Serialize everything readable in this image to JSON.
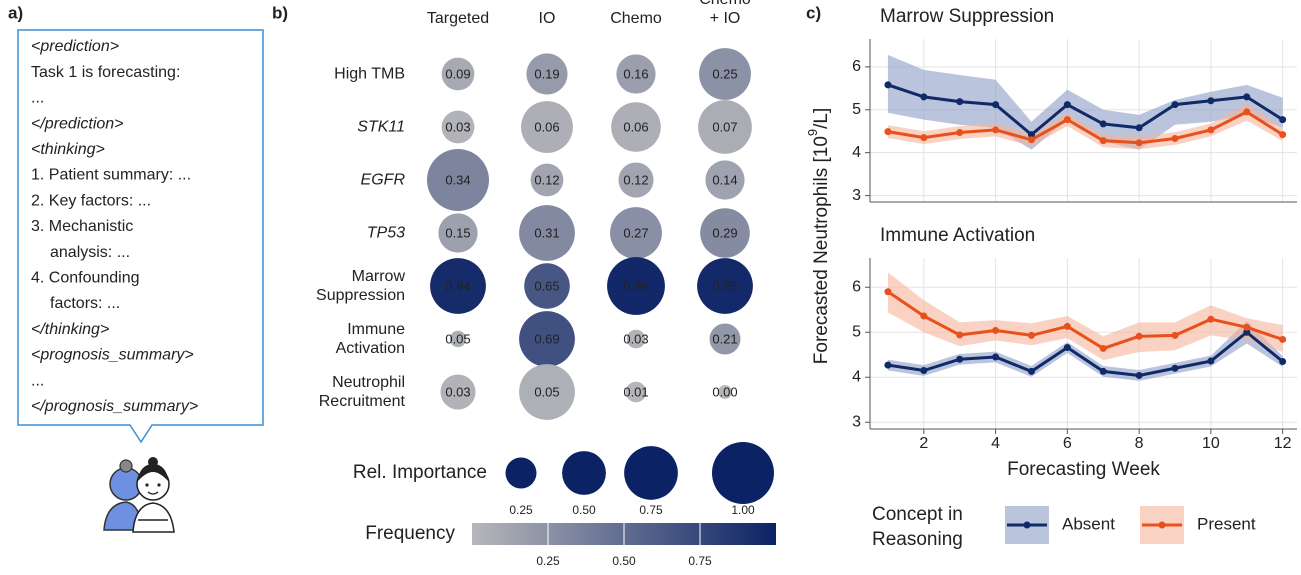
{
  "panel_labels": [
    "a)",
    "b)",
    "c)"
  ],
  "panel_a": {
    "lines": [
      {
        "text": "<prediction>",
        "style": "italic"
      },
      {
        "text": "Task 1 is forecasting:",
        "style": "normal"
      },
      {
        "text": "...",
        "style": "normal"
      },
      {
        "text": "</prediction>",
        "style": "italic"
      },
      {
        "text": "<thinking>",
        "style": "italic"
      },
      {
        "text": "1. Patient summary: ...",
        "style": "normal"
      },
      {
        "text": "2. Key factors: ...",
        "style": "normal"
      },
      {
        "text": "3. Mechanistic",
        "style": "normal"
      },
      {
        "text": "analysis: ...",
        "style": "indent"
      },
      {
        "text": "4. Confounding",
        "style": "normal"
      },
      {
        "text": "factors: ...",
        "style": "indent"
      },
      {
        "text": "</thinking>",
        "style": "italic"
      },
      {
        "text": "<prognosis_summary>",
        "style": "italic"
      },
      {
        "text": "...",
        "style": "normal"
      },
      {
        "text": "</prognosis_summary>",
        "style": "italic"
      }
    ]
  },
  "chart_data": [
    {
      "type": "bubble_matrix",
      "columns": [
        "Targeted",
        "IO",
        "Chemo",
        "Chemo\n+ IO"
      ],
      "rows": [
        "High TMB",
        "STK11",
        "EGFR",
        "TP53",
        "Marrow\nSuppression",
        "Immune\nActivation",
        "Neutrophil\nRecruitment"
      ],
      "row_font_style": [
        "normal",
        "italic",
        "italic",
        "italic",
        "normal",
        "normal",
        "normal"
      ],
      "values": [
        [
          0.09,
          0.19,
          0.16,
          0.25
        ],
        [
          0.03,
          0.06,
          0.06,
          0.07
        ],
        [
          0.34,
          0.12,
          0.12,
          0.14
        ],
        [
          0.15,
          0.31,
          0.27,
          0.29
        ],
        [
          0.94,
          0.65,
          0.96,
          0.95
        ],
        [
          0.05,
          0.69,
          0.03,
          0.21
        ],
        [
          0.03,
          0.05,
          0.01,
          0
        ]
      ],
      "value_labels": [
        [
          "0.09",
          "0.19",
          "0.16",
          "0.25"
        ],
        [
          "0.03",
          "0.06",
          "0.06",
          "0.07"
        ],
        [
          "0.34",
          "0.12",
          "0.12",
          "0.14"
        ],
        [
          "0.15",
          "0.31",
          "0.27",
          "0.29"
        ],
        [
          "0.94",
          "0.65",
          "0.96",
          "0.95"
        ],
        [
          "0.05",
          "0.69",
          "0.03",
          "0.21"
        ],
        [
          "0.03",
          "0.05",
          "0.01",
          "0.00"
        ]
      ],
      "sizes": [
        [
          0.28,
          0.44,
          0.4,
          0.7
        ],
        [
          0.28,
          0.7,
          0.64,
          0.75
        ],
        [
          1,
          0.28,
          0.32,
          0.4
        ],
        [
          0.4,
          0.81,
          0.7,
          0.64
        ],
        [
          0.81,
          0.54,
          0.87,
          0.81
        ],
        [
          0.07,
          0.81,
          0.09,
          0.25
        ],
        [
          0.32,
          0.81,
          0.11,
          0.05
        ]
      ],
      "color_scale": [
        "#b7b7bb",
        "#0b2265"
      ],
      "size_legend": {
        "title": "Rel. Importance",
        "ticks": [
          0.25,
          {
            "value": 0.5,
            "label": "0.50"
          },
          0.75,
          {
            "value": 1,
            "label": "1.00"
          }
        ]
      },
      "color_legend": {
        "title": "Frequency",
        "ticks": [
          0.25,
          {
            "value": 0.5,
            "label": "0.50"
          },
          0.75
        ]
      }
    },
    {
      "type": "line",
      "title": "Marrow Suppression",
      "ylabel": [
        "Forecasted Neutrophils [10",
        "9",
        "/L]"
      ],
      "x": [
        1,
        2,
        3,
        4,
        5,
        6,
        7,
        8,
        9,
        10,
        11,
        12
      ],
      "xlim": [
        0.5,
        12.4
      ],
      "xticks": [
        2,
        4,
        6,
        8,
        10,
        12
      ],
      "ylim": [
        2.85,
        6.65
      ],
      "yticks": [
        3,
        4,
        5,
        6
      ],
      "grid": true,
      "series": [
        {
          "name": "Absent",
          "color": "#0f2a66",
          "band_color": "#8d9cc6",
          "values": [
            5.58,
            5.3,
            5.19,
            5.12,
            4.42,
            5.12,
            4.67,
            4.58,
            5.12,
            5.21,
            5.3,
            4.77
          ],
          "lower": [
            4.93,
            4.77,
            4.65,
            4.58,
            4.07,
            4.77,
            4.26,
            4.07,
            4.65,
            4.72,
            4.88,
            4.58
          ],
          "upper": [
            6.28,
            5.93,
            5.81,
            5.7,
            4.72,
            5.47,
            5.0,
            4.88,
            5.23,
            5.42,
            5.58,
            5.28
          ]
        },
        {
          "name": "Present",
          "color": "#e8501c",
          "band_color": "#f5b49b",
          "values": [
            4.49,
            4.35,
            4.47,
            4.53,
            4.3,
            4.77,
            4.28,
            4.23,
            4.33,
            4.53,
            4.95,
            4.42
          ],
          "lower": [
            4.34,
            4.2,
            4.32,
            4.38,
            4.15,
            4.62,
            4.13,
            4.08,
            4.18,
            4.38,
            4.75,
            4.27
          ],
          "upper": [
            4.64,
            4.5,
            4.62,
            4.68,
            4.45,
            4.92,
            4.43,
            4.38,
            4.48,
            4.68,
            5.15,
            4.57
          ]
        }
      ]
    },
    {
      "type": "line",
      "title": "Immune Activation",
      "xlabel": "Forecasting Week",
      "legend_title": "Concept in\nReasoning",
      "x": [
        1,
        2,
        3,
        4,
        5,
        6,
        7,
        8,
        9,
        10,
        11,
        12
      ],
      "xlim": [
        0.5,
        12.4
      ],
      "xticks": [
        2,
        4,
        6,
        8,
        10,
        12
      ],
      "ylim": [
        2.85,
        6.65
      ],
      "yticks": [
        3,
        4,
        5,
        6
      ],
      "grid": true,
      "series": [
        {
          "name": "Absent",
          "color": "#0f2a66",
          "band_color": "#8d9cc6",
          "values": [
            4.27,
            4.15,
            4.4,
            4.45,
            4.13,
            4.66,
            4.13,
            4.04,
            4.2,
            4.36,
            5.0,
            4.35
          ],
          "lower": [
            4.15,
            4.03,
            4.28,
            4.33,
            4.01,
            4.54,
            4.01,
            3.92,
            4.08,
            4.24,
            4.75,
            4.23
          ],
          "upper": [
            4.39,
            4.27,
            4.52,
            4.57,
            4.25,
            4.78,
            4.25,
            4.16,
            4.32,
            4.48,
            5.25,
            4.47
          ]
        },
        {
          "name": "Present",
          "color": "#e8501c",
          "band_color": "#f5b49b",
          "values": [
            5.9,
            5.36,
            4.94,
            5.04,
            4.93,
            5.13,
            4.64,
            4.91,
            4.93,
            5.29,
            5.11,
            4.84
          ],
          "lower": [
            5.44,
            5.0,
            4.69,
            4.82,
            4.71,
            4.87,
            4.38,
            4.56,
            4.6,
            4.93,
            4.82,
            4.56
          ],
          "upper": [
            6.33,
            5.71,
            5.22,
            5.27,
            5.2,
            5.36,
            4.91,
            5.22,
            5.22,
            5.6,
            5.31,
            5.16
          ]
        }
      ]
    }
  ]
}
